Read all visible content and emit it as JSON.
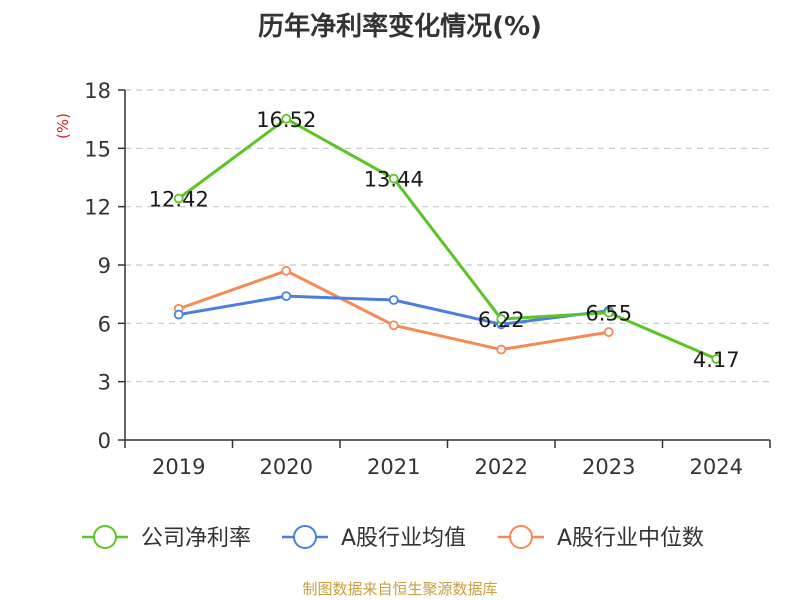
{
  "chart_data": {
    "type": "line",
    "title": "历年净利率变化情况(%)",
    "ylabel": "(%)",
    "xlabel": "",
    "categories": [
      "2019",
      "2020",
      "2021",
      "2022",
      "2023",
      "2024"
    ],
    "ylim": [
      0,
      18
    ],
    "yticks": [
      0,
      3,
      6,
      9,
      12,
      15,
      18
    ],
    "grid": true,
    "legend_position": "bottom",
    "series": [
      {
        "name": "公司净利率",
        "color": "#5cc524",
        "values": [
          12.42,
          16.52,
          13.44,
          6.22,
          6.55,
          4.17
        ],
        "labels": [
          "12.42",
          "16.52",
          "13.44",
          "6.22",
          "6.55",
          "4.17"
        ]
      },
      {
        "name": "A股行业均值",
        "color": "#4a7fe0",
        "values": [
          6.45,
          7.4,
          7.2,
          5.95,
          6.65,
          null
        ]
      },
      {
        "name": "A股行业中位数",
        "color": "#f58a57",
        "values": [
          6.75,
          8.7,
          5.9,
          4.65,
          5.55,
          null
        ]
      }
    ]
  },
  "footer": {
    "source": "制图数据来自恒生聚源数据库"
  }
}
